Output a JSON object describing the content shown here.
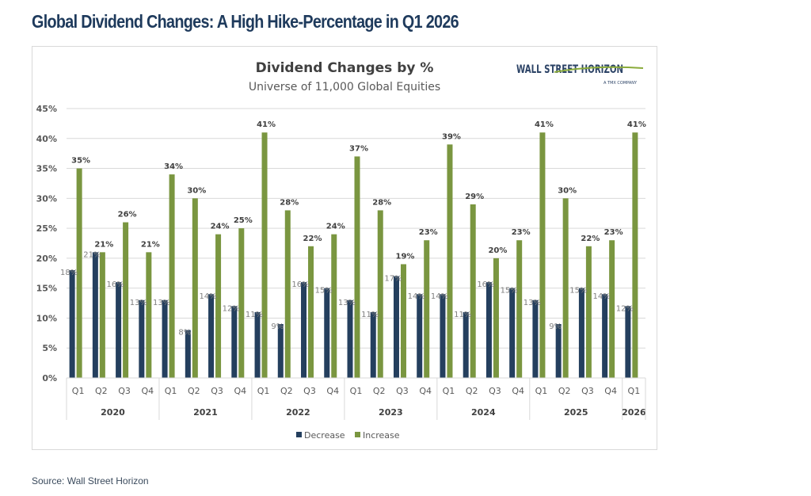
{
  "page_title": "Global Dividend Changes: A High Hike-Percentage in Q1 2026",
  "source": "Source: Wall Street Horizon",
  "logo": {
    "text": "WALL STREET HORIZON",
    "subtext": "A TMX COMPANY"
  },
  "colors": {
    "decrease": "#243f5e",
    "increase": "#7a9640",
    "title": "#1e3a5c"
  },
  "chart_data": {
    "type": "bar",
    "title": "Dividend Changes by %",
    "subtitle": "Universe of 11,000 Global Equities",
    "ylim": [
      0,
      45
    ],
    "yticks": [
      "0%",
      "5%",
      "10%",
      "15%",
      "20%",
      "25%",
      "30%",
      "35%",
      "40%",
      "45%"
    ],
    "grid": true,
    "legend_position": "bottom",
    "years": [
      {
        "label": "2020",
        "quarters": 4
      },
      {
        "label": "2021",
        "quarters": 4
      },
      {
        "label": "2022",
        "quarters": 4
      },
      {
        "label": "2023",
        "quarters": 4
      },
      {
        "label": "2024",
        "quarters": 4
      },
      {
        "label": "2025",
        "quarters": 4
      },
      {
        "label": "2026",
        "quarters": 1
      }
    ],
    "categories": [
      "Q1",
      "Q2",
      "Q3",
      "Q4",
      "Q1",
      "Q2",
      "Q3",
      "Q4",
      "Q1",
      "Q2",
      "Q3",
      "Q4",
      "Q1",
      "Q2",
      "Q3",
      "Q4",
      "Q1",
      "Q2",
      "Q3",
      "Q4",
      "Q1",
      "Q2",
      "Q3",
      "Q4",
      "Q1"
    ],
    "series": [
      {
        "name": "Decrease",
        "values": [
          18,
          21,
          16,
          13,
          13,
          8,
          14,
          12,
          11,
          9,
          16,
          15,
          13,
          11,
          17,
          14,
          14,
          11,
          16,
          15,
          13,
          9,
          15,
          14,
          12
        ]
      },
      {
        "name": "Increase",
        "values": [
          35,
          21,
          26,
          21,
          34,
          30,
          24,
          25,
          41,
          28,
          22,
          24,
          37,
          28,
          19,
          23,
          39,
          29,
          20,
          23,
          41,
          30,
          22,
          23,
          41
        ]
      }
    ]
  }
}
